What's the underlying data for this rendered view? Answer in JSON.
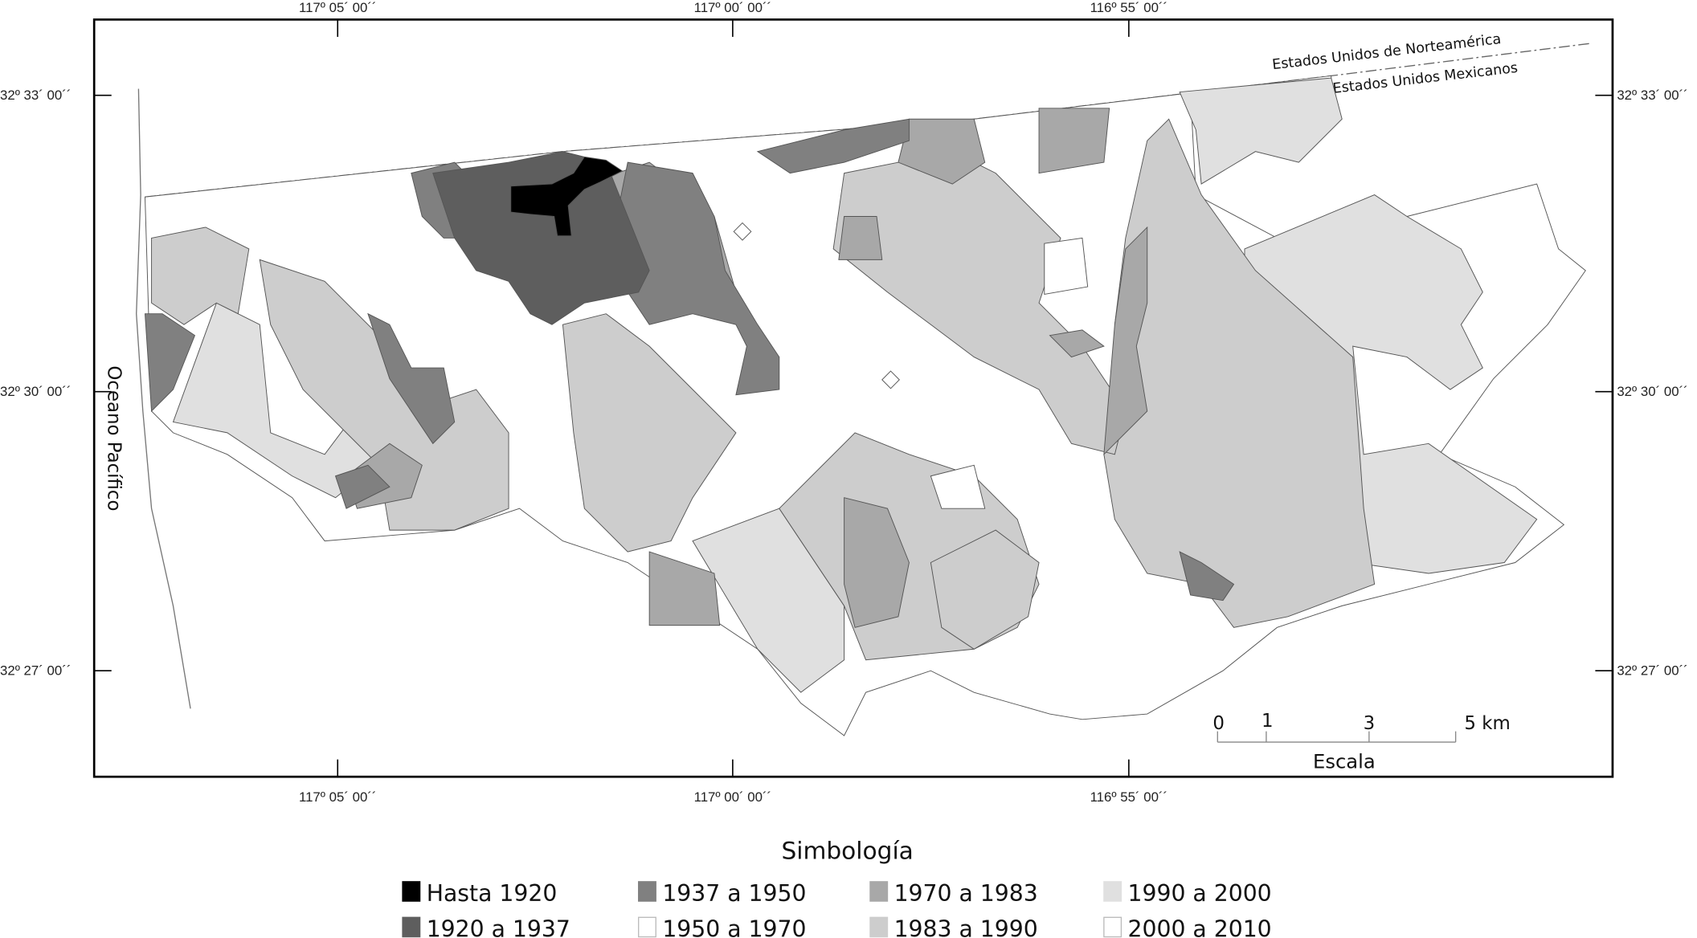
{
  "map": {
    "coordinates": {
      "longitudes": [
        "117º 05´ 00´´",
        "117º 00´ 00´´",
        "116º 55´ 00´´"
      ],
      "latitudes": [
        "32º 33´ 00´´",
        "32º 30´ 00´´",
        "32º 27´ 00´´"
      ]
    },
    "labels": {
      "border_north": "Estados Unidos de Norteamérica",
      "border_south": "Estados Unidos Mexicanos",
      "ocean": "Oceano Pacífico"
    },
    "scale": {
      "title": "Escala",
      "ticks": [
        "0",
        "1",
        "3",
        "5 km"
      ]
    }
  },
  "legend": {
    "title": "Simbología",
    "items": [
      {
        "label": "Hasta 1920",
        "color": "#000000"
      },
      {
        "label": "1920 a 1937",
        "color": "#5e5e5e"
      },
      {
        "label": "1937 a 1950",
        "color": "#808080"
      },
      {
        "label": "1950 a 1970",
        "color": "#ffffff"
      },
      {
        "label": "1970 a 1983",
        "color": "#a8a8a8"
      },
      {
        "label": "1983 a 1990",
        "color": "#cdcdcd"
      },
      {
        "label": "1990 a 2000",
        "color": "#e0e0e0"
      },
      {
        "label": "2000 a 2010",
        "color": "#ffffff"
      }
    ]
  }
}
